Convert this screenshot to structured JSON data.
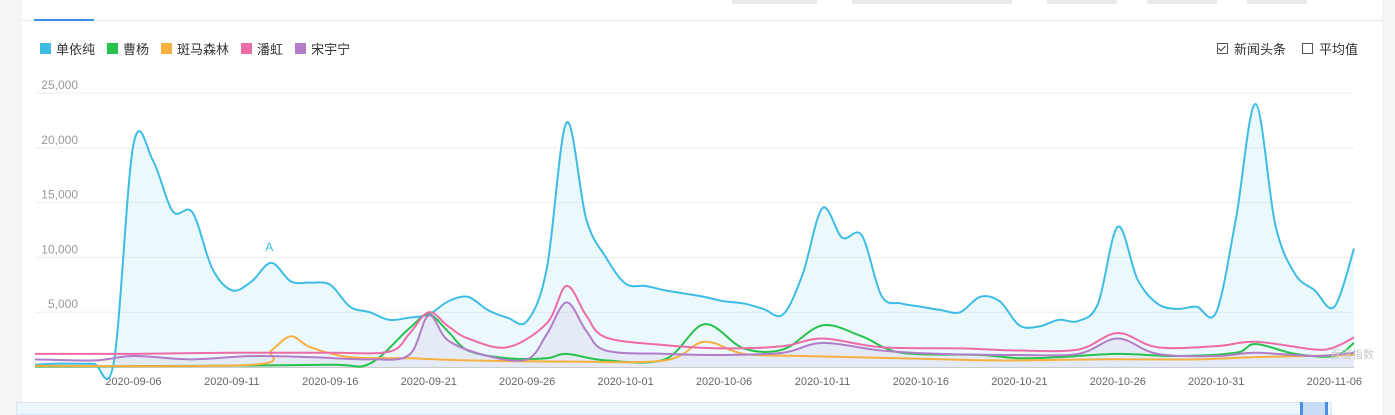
{
  "legend": [
    {
      "name": "单依纯",
      "color": "#3dbde6"
    },
    {
      "name": "曹杨",
      "color": "#27c24c"
    },
    {
      "name": "斑马森林",
      "color": "#f5b040"
    },
    {
      "name": "潘虹",
      "color": "#ef6ba8"
    },
    {
      "name": "宋宇宁",
      "color": "#b27cc9"
    }
  ],
  "options": {
    "news_label": "新闻头条",
    "news_checked": true,
    "avg_label": "平均值",
    "avg_checked": false
  },
  "watermark": "百度指数",
  "chart_data": {
    "type": "area",
    "x_start": "2020-09-01",
    "x_end": "2020-11-07",
    "ylim": [
      0,
      25000
    ],
    "y_ticks": [
      "25,000",
      "20,000",
      "15,000",
      "10,000",
      "5,000"
    ],
    "y_tick_values": [
      25000,
      20000,
      15000,
      10000,
      5000
    ],
    "x_ticks": [
      "2020-09-06",
      "2020-09-11",
      "2020-09-16",
      "2020-09-21",
      "2020-09-26",
      "2020-10-01",
      "2020-10-06",
      "2020-10-11",
      "2020-10-16",
      "2020-10-21",
      "2020-10-26",
      "2020-10-31",
      "2020-11-06"
    ],
    "annotations": [
      {
        "label": "A",
        "x": "2020-09-13",
        "y": 9500
      }
    ],
    "series": [
      {
        "name": "单依纯",
        "color": "#3dbde6",
        "fill": true,
        "values": [
          {
            "x": "2020-09-01",
            "y": 200
          },
          {
            "x": "2020-09-02",
            "y": 300
          },
          {
            "x": "2020-09-03",
            "y": 300
          },
          {
            "x": "2020-09-04",
            "y": 300
          },
          {
            "x": "2020-09-05",
            "y": 400
          },
          {
            "x": "2020-09-06",
            "y": 20300
          },
          {
            "x": "2020-09-07",
            "y": 18800
          },
          {
            "x": "2020-09-08",
            "y": 14200
          },
          {
            "x": "2020-09-09",
            "y": 14100
          },
          {
            "x": "2020-09-10",
            "y": 9000
          },
          {
            "x": "2020-09-11",
            "y": 7000
          },
          {
            "x": "2020-09-12",
            "y": 7800
          },
          {
            "x": "2020-09-13",
            "y": 9500
          },
          {
            "x": "2020-09-14",
            "y": 7800
          },
          {
            "x": "2020-09-15",
            "y": 7700
          },
          {
            "x": "2020-09-16",
            "y": 7500
          },
          {
            "x": "2020-09-17",
            "y": 5500
          },
          {
            "x": "2020-09-18",
            "y": 5000
          },
          {
            "x": "2020-09-19",
            "y": 4300
          },
          {
            "x": "2020-09-20",
            "y": 4500
          },
          {
            "x": "2020-09-21",
            "y": 4800
          },
          {
            "x": "2020-09-22",
            "y": 6000
          },
          {
            "x": "2020-09-23",
            "y": 6400
          },
          {
            "x": "2020-09-24",
            "y": 5200
          },
          {
            "x": "2020-09-25",
            "y": 4500
          },
          {
            "x": "2020-09-26",
            "y": 4200
          },
          {
            "x": "2020-09-27",
            "y": 9000
          },
          {
            "x": "2020-09-28",
            "y": 22300
          },
          {
            "x": "2020-09-29",
            "y": 13500
          },
          {
            "x": "2020-09-30",
            "y": 10000
          },
          {
            "x": "2020-10-01",
            "y": 7600
          },
          {
            "x": "2020-10-02",
            "y": 7400
          },
          {
            "x": "2020-10-03",
            "y": 7000
          },
          {
            "x": "2020-10-04",
            "y": 6700
          },
          {
            "x": "2020-10-05",
            "y": 6400
          },
          {
            "x": "2020-10-06",
            "y": 6000
          },
          {
            "x": "2020-10-07",
            "y": 5800
          },
          {
            "x": "2020-10-08",
            "y": 5300
          },
          {
            "x": "2020-10-09",
            "y": 4800
          },
          {
            "x": "2020-10-10",
            "y": 8500
          },
          {
            "x": "2020-10-11",
            "y": 14500
          },
          {
            "x": "2020-10-12",
            "y": 11800
          },
          {
            "x": "2020-10-13",
            "y": 12000
          },
          {
            "x": "2020-10-14",
            "y": 6500
          },
          {
            "x": "2020-10-15",
            "y": 5800
          },
          {
            "x": "2020-10-16",
            "y": 5500
          },
          {
            "x": "2020-10-17",
            "y": 5200
          },
          {
            "x": "2020-10-18",
            "y": 5000
          },
          {
            "x": "2020-10-19",
            "y": 6400
          },
          {
            "x": "2020-10-20",
            "y": 6000
          },
          {
            "x": "2020-10-21",
            "y": 3800
          },
          {
            "x": "2020-10-22",
            "y": 3700
          },
          {
            "x": "2020-10-23",
            "y": 4300
          },
          {
            "x": "2020-10-24",
            "y": 4200
          },
          {
            "x": "2020-10-25",
            "y": 5800
          },
          {
            "x": "2020-10-26",
            "y": 12800
          },
          {
            "x": "2020-10-27",
            "y": 8000
          },
          {
            "x": "2020-10-28",
            "y": 5800
          },
          {
            "x": "2020-10-29",
            "y": 5300
          },
          {
            "x": "2020-10-30",
            "y": 5500
          },
          {
            "x": "2020-10-31",
            "y": 5000
          },
          {
            "x": "2020-11-01",
            "y": 13500
          },
          {
            "x": "2020-11-02",
            "y": 24000
          },
          {
            "x": "2020-11-03",
            "y": 13000
          },
          {
            "x": "2020-11-04",
            "y": 8500
          },
          {
            "x": "2020-11-05",
            "y": 7000
          },
          {
            "x": "2020-11-06",
            "y": 5500
          },
          {
            "x": "2020-11-07",
            "y": 10800
          }
        ]
      },
      {
        "name": "曹杨",
        "color": "#27c24c",
        "fill": false,
        "values": [
          {
            "x": "2020-09-01",
            "y": 50
          },
          {
            "x": "2020-09-09",
            "y": 100
          },
          {
            "x": "2020-09-16",
            "y": 200
          },
          {
            "x": "2020-09-18",
            "y": 300
          },
          {
            "x": "2020-09-20",
            "y": 3500
          },
          {
            "x": "2020-09-21",
            "y": 4800
          },
          {
            "x": "2020-09-22",
            "y": 3200
          },
          {
            "x": "2020-09-23",
            "y": 1500
          },
          {
            "x": "2020-09-25",
            "y": 800
          },
          {
            "x": "2020-09-27",
            "y": 800
          },
          {
            "x": "2020-09-28",
            "y": 1200
          },
          {
            "x": "2020-09-30",
            "y": 600
          },
          {
            "x": "2020-10-03",
            "y": 700
          },
          {
            "x": "2020-10-05",
            "y": 3900
          },
          {
            "x": "2020-10-07",
            "y": 1700
          },
          {
            "x": "2020-10-09",
            "y": 1600
          },
          {
            "x": "2020-10-11",
            "y": 3800
          },
          {
            "x": "2020-10-13",
            "y": 2800
          },
          {
            "x": "2020-10-15",
            "y": 1300
          },
          {
            "x": "2020-10-19",
            "y": 1100
          },
          {
            "x": "2020-10-21",
            "y": 800
          },
          {
            "x": "2020-10-23",
            "y": 900
          },
          {
            "x": "2020-10-26",
            "y": 1200
          },
          {
            "x": "2020-10-29",
            "y": 1000
          },
          {
            "x": "2020-11-01",
            "y": 1300
          },
          {
            "x": "2020-11-02",
            "y": 2100
          },
          {
            "x": "2020-11-04",
            "y": 1200
          },
          {
            "x": "2020-11-06",
            "y": 1000
          },
          {
            "x": "2020-11-07",
            "y": 2200
          }
        ]
      },
      {
        "name": "斑马森林",
        "color": "#f5b040",
        "fill": false,
        "values": [
          {
            "x": "2020-09-01",
            "y": 100
          },
          {
            "x": "2020-09-12",
            "y": 200
          },
          {
            "x": "2020-09-13",
            "y": 1500
          },
          {
            "x": "2020-09-14",
            "y": 2800
          },
          {
            "x": "2020-09-15",
            "y": 1800
          },
          {
            "x": "2020-09-17",
            "y": 900
          },
          {
            "x": "2020-09-20",
            "y": 800
          },
          {
            "x": "2020-09-23",
            "y": 600
          },
          {
            "x": "2020-09-28",
            "y": 500
          },
          {
            "x": "2020-10-03",
            "y": 600
          },
          {
            "x": "2020-10-05",
            "y": 2300
          },
          {
            "x": "2020-10-07",
            "y": 1200
          },
          {
            "x": "2020-10-10",
            "y": 1000
          },
          {
            "x": "2020-10-15",
            "y": 800
          },
          {
            "x": "2020-10-20",
            "y": 600
          },
          {
            "x": "2020-10-25",
            "y": 700
          },
          {
            "x": "2020-10-30",
            "y": 700
          },
          {
            "x": "2020-11-02",
            "y": 900
          },
          {
            "x": "2020-11-07",
            "y": 1100
          }
        ]
      },
      {
        "name": "潘虹",
        "color": "#ef6ba8",
        "fill": false,
        "values": [
          {
            "x": "2020-09-01",
            "y": 1200
          },
          {
            "x": "2020-09-06",
            "y": 1200
          },
          {
            "x": "2020-09-11",
            "y": 1300
          },
          {
            "x": "2020-09-16",
            "y": 1300
          },
          {
            "x": "2020-09-19",
            "y": 1400
          },
          {
            "x": "2020-09-20",
            "y": 3000
          },
          {
            "x": "2020-09-21",
            "y": 5000
          },
          {
            "x": "2020-09-22",
            "y": 3700
          },
          {
            "x": "2020-09-23",
            "y": 2600
          },
          {
            "x": "2020-09-25",
            "y": 1800
          },
          {
            "x": "2020-09-27",
            "y": 4000
          },
          {
            "x": "2020-09-28",
            "y": 7400
          },
          {
            "x": "2020-09-29",
            "y": 4700
          },
          {
            "x": "2020-09-30",
            "y": 2700
          },
          {
            "x": "2020-10-03",
            "y": 2000
          },
          {
            "x": "2020-10-06",
            "y": 1700
          },
          {
            "x": "2020-10-09",
            "y": 1900
          },
          {
            "x": "2020-10-11",
            "y": 2600
          },
          {
            "x": "2020-10-14",
            "y": 1800
          },
          {
            "x": "2020-10-18",
            "y": 1700
          },
          {
            "x": "2020-10-21",
            "y": 1500
          },
          {
            "x": "2020-10-24",
            "y": 1600
          },
          {
            "x": "2020-10-26",
            "y": 3100
          },
          {
            "x": "2020-10-28",
            "y": 1800
          },
          {
            "x": "2020-10-31",
            "y": 1900
          },
          {
            "x": "2020-11-02",
            "y": 2300
          },
          {
            "x": "2020-11-05",
            "y": 1600
          },
          {
            "x": "2020-11-06",
            "y": 1800
          },
          {
            "x": "2020-11-07",
            "y": 2700
          }
        ]
      },
      {
        "name": "宋宇宁",
        "color": "#b27cc9",
        "fill": true,
        "values": [
          {
            "x": "2020-09-01",
            "y": 700
          },
          {
            "x": "2020-09-04",
            "y": 600
          },
          {
            "x": "2020-09-06",
            "y": 1000
          },
          {
            "x": "2020-09-09",
            "y": 700
          },
          {
            "x": "2020-09-12",
            "y": 1000
          },
          {
            "x": "2020-09-15",
            "y": 900
          },
          {
            "x": "2020-09-18",
            "y": 700
          },
          {
            "x": "2020-09-20",
            "y": 1100
          },
          {
            "x": "2020-09-21",
            "y": 4700
          },
          {
            "x": "2020-09-22",
            "y": 2400
          },
          {
            "x": "2020-09-24",
            "y": 1000
          },
          {
            "x": "2020-09-26",
            "y": 700
          },
          {
            "x": "2020-09-27",
            "y": 3000
          },
          {
            "x": "2020-09-28",
            "y": 5900
          },
          {
            "x": "2020-09-29",
            "y": 3300
          },
          {
            "x": "2020-09-30",
            "y": 1500
          },
          {
            "x": "2020-10-03",
            "y": 1200
          },
          {
            "x": "2020-10-06",
            "y": 1100
          },
          {
            "x": "2020-10-09",
            "y": 1300
          },
          {
            "x": "2020-10-11",
            "y": 2200
          },
          {
            "x": "2020-10-14",
            "y": 1500
          },
          {
            "x": "2020-10-17",
            "y": 1200
          },
          {
            "x": "2020-10-21",
            "y": 1100
          },
          {
            "x": "2020-10-24",
            "y": 1200
          },
          {
            "x": "2020-10-26",
            "y": 2600
          },
          {
            "x": "2020-10-28",
            "y": 1200
          },
          {
            "x": "2020-10-31",
            "y": 1000
          },
          {
            "x": "2020-11-02",
            "y": 1300
          },
          {
            "x": "2020-11-05",
            "y": 1000
          },
          {
            "x": "2020-11-07",
            "y": 1300
          }
        ]
      }
    ]
  }
}
